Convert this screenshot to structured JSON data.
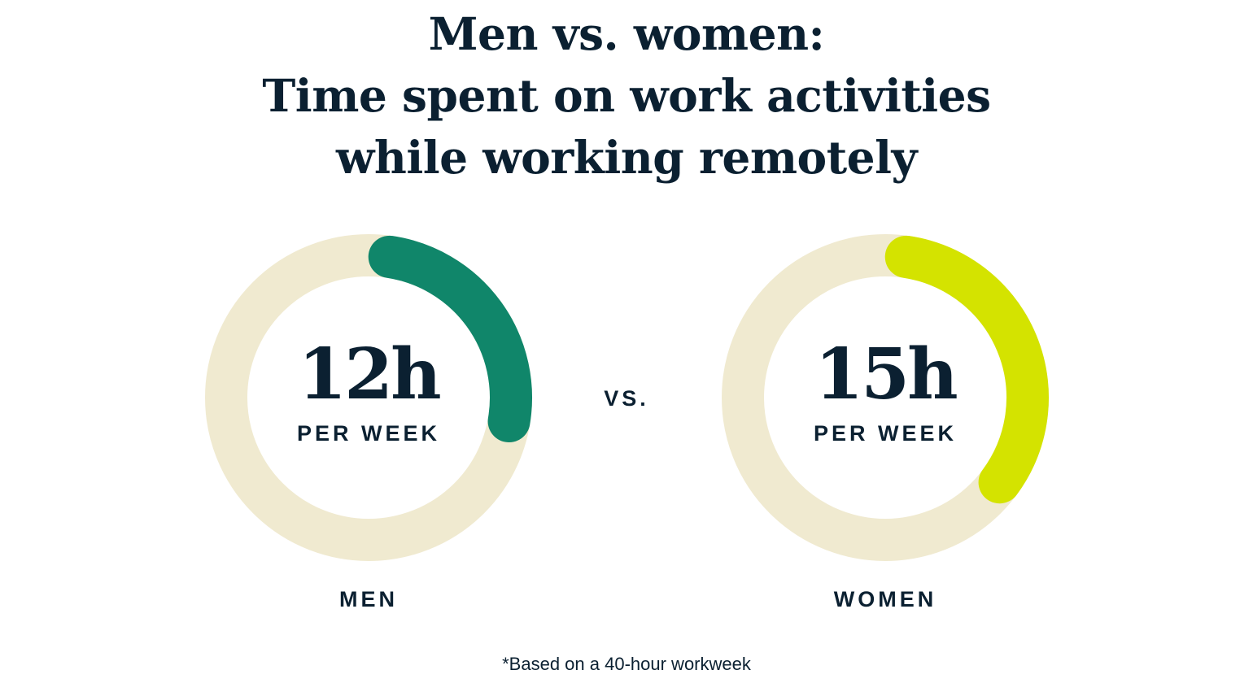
{
  "title_lines": [
    "Men vs. women:",
    "Time spent on work activities",
    "while working remotely"
  ],
  "chart_data": {
    "type": "donut",
    "total_hours": 40,
    "items": [
      {
        "label": "MEN",
        "value": 12,
        "value_text": "12h",
        "unit_text": "PER WEEK",
        "color": "#10866a"
      },
      {
        "label": "WOMEN",
        "value": 15,
        "value_text": "15h",
        "unit_text": "PER WEEK",
        "color": "#d4e300"
      }
    ],
    "track_color": "#f0ead0",
    "separator": "VS."
  },
  "footnote": "*Based on a 40-hour workweek"
}
